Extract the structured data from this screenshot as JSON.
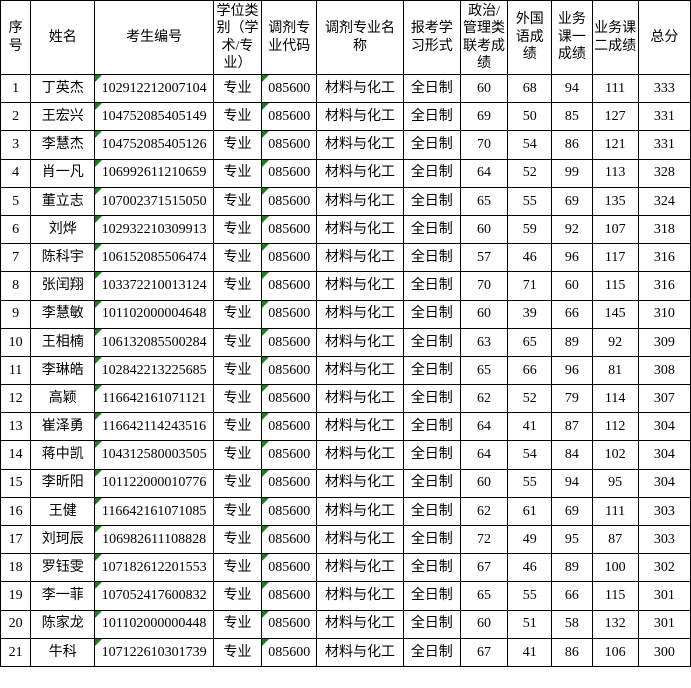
{
  "colors": {
    "flag_triangle": "#1e7d1e",
    "grid_border": "#000000",
    "background": "#ffffff",
    "text": "#000000"
  },
  "table": {
    "columns": [
      {
        "key": "index",
        "label": "序号"
      },
      {
        "key": "name",
        "label": "姓名"
      },
      {
        "key": "candidate_no",
        "label": "考生编号"
      },
      {
        "key": "degree_type",
        "label": "学位类别（学术/专业）"
      },
      {
        "key": "major_code",
        "label": "调剂专业代码"
      },
      {
        "key": "major_name",
        "label": "调剂专业名称"
      },
      {
        "key": "study_form",
        "label": "报考学习形式"
      },
      {
        "key": "politics_score",
        "label": "政治/管理类联考成绩"
      },
      {
        "key": "foreign_language_score",
        "label": "外国语成绩"
      },
      {
        "key": "course1_score",
        "label": "业务课一成绩"
      },
      {
        "key": "course2_score",
        "label": "业务课二成绩"
      },
      {
        "key": "total_score",
        "label": "总分"
      }
    ],
    "flagged_columns": [
      "candidate_no",
      "major_code"
    ],
    "flag_meaning": "green-triangle-marker",
    "rows": [
      [
        1,
        "丁英杰",
        "102912212007104",
        "专业",
        "085600",
        "材料与化工",
        "全日制",
        60,
        68,
        94,
        111,
        333
      ],
      [
        2,
        "王宏兴",
        "104752085405149",
        "专业",
        "085600",
        "材料与化工",
        "全日制",
        69,
        50,
        85,
        127,
        331
      ],
      [
        3,
        "李慧杰",
        "104752085405126",
        "专业",
        "085600",
        "材料与化工",
        "全日制",
        70,
        54,
        86,
        121,
        331
      ],
      [
        4,
        "肖一凡",
        "106992611210659",
        "专业",
        "085600",
        "材料与化工",
        "全日制",
        64,
        52,
        99,
        113,
        328
      ],
      [
        5,
        "董立志",
        "107002371515050",
        "专业",
        "085600",
        "材料与化工",
        "全日制",
        65,
        55,
        69,
        135,
        324
      ],
      [
        6,
        "刘烨",
        "102932210309913",
        "专业",
        "085600",
        "材料与化工",
        "全日制",
        60,
        59,
        92,
        107,
        318
      ],
      [
        7,
        "陈科宇",
        "106152085506474",
        "专业",
        "085600",
        "材料与化工",
        "全日制",
        57,
        46,
        96,
        117,
        316
      ],
      [
        8,
        "张闰翔",
        "103372210013124",
        "专业",
        "085600",
        "材料与化工",
        "全日制",
        70,
        71,
        60,
        115,
        316
      ],
      [
        9,
        "李慧敏",
        "101102000004648",
        "专业",
        "085600",
        "材料与化工",
        "全日制",
        60,
        39,
        66,
        145,
        310
      ],
      [
        10,
        "王相楠",
        "106132085500284",
        "专业",
        "085600",
        "材料与化工",
        "全日制",
        63,
        65,
        89,
        92,
        309
      ],
      [
        11,
        "李琳皓",
        "102842213225685",
        "专业",
        "085600",
        "材料与化工",
        "全日制",
        65,
        66,
        96,
        81,
        308
      ],
      [
        12,
        "高颖",
        "116642161071121",
        "专业",
        "085600",
        "材料与化工",
        "全日制",
        62,
        52,
        79,
        114,
        307
      ],
      [
        13,
        "崔泽勇",
        "116642114243516",
        "专业",
        "085600",
        "材料与化工",
        "全日制",
        64,
        41,
        87,
        112,
        304
      ],
      [
        14,
        "蒋中凯",
        "104312580003505",
        "专业",
        "085600",
        "材料与化工",
        "全日制",
        64,
        54,
        84,
        102,
        304
      ],
      [
        15,
        "李昕阳",
        "101122000010776",
        "专业",
        "085600",
        "材料与化工",
        "全日制",
        60,
        55,
        94,
        95,
        304
      ],
      [
        16,
        "王健",
        "116642161071085",
        "专业",
        "085600",
        "材料与化工",
        "全日制",
        62,
        61,
        69,
        111,
        303
      ],
      [
        17,
        "刘珂辰",
        "106982611108828",
        "专业",
        "085600",
        "材料与化工",
        "全日制",
        72,
        49,
        95,
        87,
        303
      ],
      [
        18,
        "罗钰雯",
        "107182612201553",
        "专业",
        "085600",
        "材料与化工",
        "全日制",
        67,
        46,
        89,
        100,
        302
      ],
      [
        19,
        "李一菲",
        "107052417600832",
        "专业",
        "085600",
        "材料与化工",
        "全日制",
        65,
        55,
        66,
        115,
        301
      ],
      [
        20,
        "陈家龙",
        "101102000000448",
        "专业",
        "085600",
        "材料与化工",
        "全日制",
        60,
        51,
        58,
        132,
        301
      ],
      [
        21,
        "牛科",
        "107122610301739",
        "专业",
        "085600",
        "材料与化工",
        "全日制",
        67,
        41,
        86,
        106,
        300
      ]
    ]
  }
}
